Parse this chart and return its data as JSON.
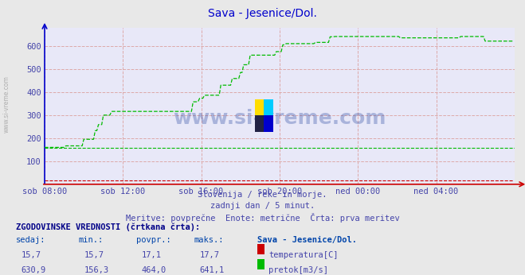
{
  "title": "Sava - Jesenice/Dol.",
  "title_color": "#0000cc",
  "bg_color": "#e8e8e8",
  "plot_bg_color": "#e8e8f8",
  "grid_color": "#ddaaaa",
  "xlabel_color": "#4444aa",
  "text_color": "#4444aa",
  "subtitle_lines": [
    "Slovenija / reke in morje.",
    "zadnji dan / 5 minut.",
    "Meritve: povprečne  Enote: metrične  Črta: prva meritev"
  ],
  "table_header": "ZGODOVINSKE VREDNOSTI (črtkana črta):",
  "table_cols": [
    "sedaj:",
    "min.:",
    "povpr.:",
    "maks.:",
    "Sava - Jesenice/Dol."
  ],
  "row1": [
    "15,7",
    "15,7",
    "17,1",
    "17,7"
  ],
  "row1_label": "temperatura[C]",
  "row1_color": "#cc0000",
  "row2": [
    "630,9",
    "156,3",
    "464,0",
    "641,1"
  ],
  "row2_label": "pretok[m3/s]",
  "row2_color": "#00bb00",
  "xticklabels": [
    "sob 08:00",
    "sob 12:00",
    "sob 16:00",
    "sob 20:00",
    "ned 00:00",
    "ned 04:00"
  ],
  "xtick_positions": [
    0,
    48,
    96,
    144,
    192,
    240
  ],
  "yticks": [
    100,
    200,
    300,
    400,
    500,
    600
  ],
  "ylim": [
    0,
    680
  ],
  "xlim": [
    0,
    288
  ],
  "temp_min": 15.7,
  "temp_max": 17.7,
  "temp_avg": 17.1,
  "flow_min": 156.3,
  "flow_max": 641.1,
  "flow_avg": 464.0,
  "watermark_text": "www.si-vreme.com",
  "axis_red": "#cc0000",
  "axis_blue": "#0000cc"
}
